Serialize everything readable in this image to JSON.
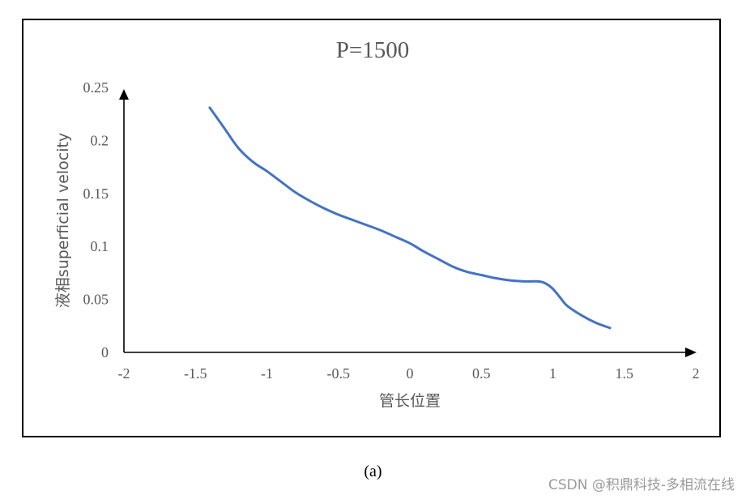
{
  "chart_data": {
    "type": "line",
    "title": "P=1500",
    "xlabel": "管长位置",
    "ylabel": "液相superficial velocity",
    "xlim": [
      -2,
      2
    ],
    "ylim": [
      0,
      0.25
    ],
    "x_ticks": [
      "-2",
      "-1.5",
      "-1",
      "-0.5",
      "0",
      "0.5",
      "1",
      "1.5",
      "2"
    ],
    "y_ticks": [
      "0",
      "0.05",
      "0.1",
      "0.15",
      "0.2",
      "0.25"
    ],
    "grid": false,
    "series": [
      {
        "color": "#4472c4",
        "x": [
          -1.4,
          -1.3,
          -1.2,
          -1.1,
          -1.0,
          -0.9,
          -0.8,
          -0.7,
          -0.6,
          -0.5,
          -0.4,
          -0.3,
          -0.2,
          -0.1,
          0.0,
          0.1,
          0.2,
          0.3,
          0.4,
          0.5,
          0.6,
          0.7,
          0.8,
          0.9,
          0.95,
          1.0,
          1.05,
          1.1,
          1.2,
          1.3,
          1.4
        ],
        "y": [
          0.231,
          0.212,
          0.193,
          0.18,
          0.171,
          0.161,
          0.151,
          0.143,
          0.136,
          0.13,
          0.125,
          0.12,
          0.115,
          0.109,
          0.103,
          0.095,
          0.088,
          0.081,
          0.076,
          0.073,
          0.07,
          0.068,
          0.067,
          0.067,
          0.065,
          0.06,
          0.052,
          0.044,
          0.035,
          0.028,
          0.023
        ]
      }
    ]
  },
  "caption": "(a)",
  "watermark": "CSDN @积鼎科技-多相流在线"
}
